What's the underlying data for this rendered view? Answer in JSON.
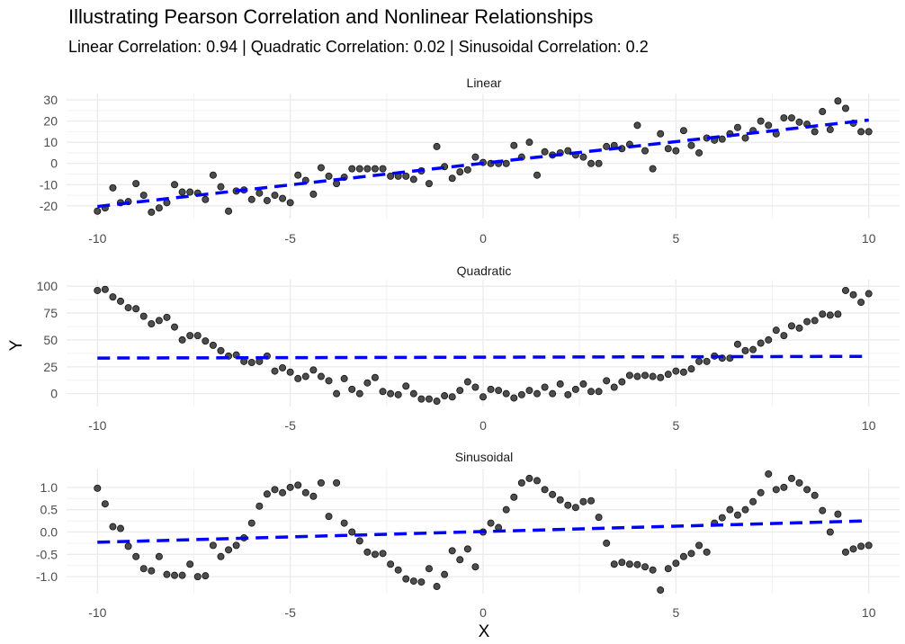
{
  "chart_data": {
    "type": "scatter",
    "title": "Illustrating Pearson Correlation and Nonlinear Relationships",
    "subtitle": "Linear Correlation: 0.94 | Quadratic Correlation: 0.02 | Sinusoidal Correlation: 0.2",
    "xlabel": "X",
    "ylabel": "Y",
    "grid": true,
    "colors": {
      "points": "#333333",
      "fit_line": "#0000ff",
      "grid": "#ebebeb"
    },
    "x_ticks": [
      -10,
      -5,
      0,
      5,
      10
    ],
    "xlim": [
      -10.8,
      10.8
    ],
    "facets": [
      {
        "name": "Linear",
        "ylim": [
          -26,
          33
        ],
        "y_ticks": [
          -20,
          -10,
          0,
          10,
          20,
          30
        ],
        "y_tick_labels": [
          "-20",
          "-10",
          "0",
          "10",
          "20",
          "30"
        ],
        "fit": {
          "x": [
            -10,
            10
          ],
          "y": [
            -20.3,
            20.5
          ]
        },
        "x": [
          -10,
          -9.8,
          -9.6,
          -9.4,
          -9.2,
          -9.0,
          -8.8,
          -8.6,
          -8.4,
          -8.2,
          -8.0,
          -7.8,
          -7.6,
          -7.4,
          -7.2,
          -7.0,
          -6.8,
          -6.6,
          -6.4,
          -6.2,
          -6.0,
          -5.8,
          -5.6,
          -5.4,
          -5.2,
          -5.0,
          -4.8,
          -4.6,
          -4.4,
          -4.2,
          -4.0,
          -3.8,
          -3.6,
          -3.4,
          -3.2,
          -3.0,
          -2.8,
          -2.6,
          -2.4,
          -2.2,
          -2.0,
          -1.8,
          -1.6,
          -1.4,
          -1.2,
          -1.0,
          -0.8,
          -0.6,
          -0.4,
          -0.2,
          0.0,
          0.2,
          0.4,
          0.6,
          0.8,
          1.0,
          1.2,
          1.4,
          1.6,
          1.8,
          2.0,
          2.2,
          2.4,
          2.6,
          2.8,
          3.0,
          3.2,
          3.4,
          3.6,
          3.8,
          4.0,
          4.2,
          4.4,
          4.6,
          4.8,
          5.0,
          5.2,
          5.4,
          5.6,
          5.8,
          6.0,
          6.2,
          6.4,
          6.6,
          6.8,
          7.0,
          7.2,
          7.4,
          7.6,
          7.8,
          8.0,
          8.2,
          8.4,
          8.6,
          8.8,
          9.0,
          9.2,
          9.4,
          9.6,
          9.8,
          10.0
        ],
        "y": [
          -22.5,
          -21,
          -11.5,
          -18.5,
          -18,
          -9.5,
          -15,
          -23,
          -21,
          -18.5,
          -10,
          -13.5,
          -13.5,
          -14,
          -17,
          -5.5,
          -11,
          -22.5,
          -13,
          -12.5,
          -17,
          -14,
          -17.5,
          -15,
          -16.5,
          -18.5,
          -5.5,
          -8,
          -14.5,
          -2,
          -6,
          -9.5,
          -6.5,
          -2.5,
          -2.5,
          -2.5,
          -2.5,
          -2.5,
          -6,
          -6,
          -6,
          -7.5,
          -3.5,
          -9.5,
          8,
          -1.5,
          -7,
          -4,
          -3,
          3,
          0.5,
          0,
          0,
          0,
          8.5,
          3,
          10,
          -5.5,
          5.5,
          4,
          5,
          6,
          4,
          3,
          0,
          0,
          8,
          8.5,
          7,
          9,
          18,
          6,
          -2.5,
          14,
          7,
          6,
          15.5,
          8.5,
          5,
          12,
          11,
          11.5,
          14,
          17,
          12,
          15.5,
          20,
          18,
          14,
          21.5,
          21.5,
          19.5,
          18.5,
          15,
          24.5,
          16,
          29.5,
          26,
          19,
          15,
          15
        ]
      },
      {
        "name": "Quadratic",
        "ylim": [
          -12,
          106
        ],
        "y_ticks": [
          0,
          25,
          50,
          75,
          100
        ],
        "y_tick_labels": [
          "0",
          "25",
          "50",
          "75",
          "100"
        ],
        "fit": {
          "x": [
            -10,
            10
          ],
          "y": [
            33.1,
            34.7
          ]
        },
        "x": [
          -10,
          -9.8,
          -9.6,
          -9.4,
          -9.2,
          -9.0,
          -8.8,
          -8.6,
          -8.4,
          -8.2,
          -8.0,
          -7.8,
          -7.6,
          -7.4,
          -7.2,
          -7.0,
          -6.8,
          -6.6,
          -6.4,
          -6.2,
          -6.0,
          -5.8,
          -5.6,
          -5.4,
          -5.2,
          -5.0,
          -4.8,
          -4.6,
          -4.4,
          -4.2,
          -4.0,
          -3.8,
          -3.6,
          -3.4,
          -3.2,
          -3.0,
          -2.8,
          -2.6,
          -2.4,
          -2.2,
          -2.0,
          -1.8,
          -1.6,
          -1.4,
          -1.2,
          -1.0,
          -0.8,
          -0.6,
          -0.4,
          -0.2,
          0.0,
          0.2,
          0.4,
          0.6,
          0.8,
          1.0,
          1.2,
          1.4,
          1.6,
          1.8,
          2.0,
          2.2,
          2.4,
          2.6,
          2.8,
          3.0,
          3.2,
          3.4,
          3.6,
          3.8,
          4.0,
          4.2,
          4.4,
          4.6,
          4.8,
          5.0,
          5.2,
          5.4,
          5.6,
          5.8,
          6.0,
          6.2,
          6.4,
          6.6,
          6.8,
          7.0,
          7.2,
          7.4,
          7.6,
          7.8,
          8.0,
          8.2,
          8.4,
          8.6,
          8.8,
          9.0,
          9.2,
          9.4,
          9.6,
          9.8,
          10.0
        ],
        "y": [
          96,
          97,
          90,
          86,
          80,
          79,
          72,
          65,
          68,
          71,
          62,
          50,
          54,
          54,
          49,
          45,
          40,
          35,
          36,
          30,
          29,
          30,
          35,
          21,
          24,
          20,
          14,
          16,
          22,
          16,
          12,
          0,
          14,
          4,
          0,
          10,
          15,
          2,
          0,
          -1,
          7,
          0,
          -5,
          -5,
          -7,
          -2,
          -3,
          3,
          11,
          6,
          -3,
          4,
          3,
          0,
          -4,
          -1,
          3,
          0,
          6,
          0,
          9,
          -1,
          4,
          9,
          2,
          2,
          12,
          6,
          11,
          17,
          16,
          17,
          16,
          15,
          18,
          21,
          20,
          23,
          30,
          30,
          35,
          33,
          33,
          46,
          40,
          41,
          47,
          50,
          59,
          54,
          63,
          61,
          67,
          68,
          74,
          73,
          74,
          96,
          92,
          85,
          93
        ],
        "note_x_offset": 0
      },
      {
        "name": "Sinusoidal",
        "ylim": [
          -1.38,
          1.42
        ],
        "y_ticks": [
          -1.0,
          -0.5,
          0.0,
          0.5,
          1.0
        ],
        "y_tick_labels": [
          "-1.0",
          "-0.5",
          "0.0",
          "0.5",
          "1.0"
        ],
        "fit": {
          "x": [
            -10,
            10
          ],
          "y": [
            -0.23,
            0.25
          ]
        },
        "x": [
          -10,
          -9.8,
          -9.6,
          -9.4,
          -9.2,
          -9.0,
          -8.8,
          -8.6,
          -8.4,
          -8.2,
          -8.0,
          -7.8,
          -7.6,
          -7.4,
          -7.2,
          -7.0,
          -6.8,
          -6.6,
          -6.4,
          -6.2,
          -6.0,
          -5.8,
          -5.6,
          -5.4,
          -5.2,
          -5.0,
          -4.8,
          -4.6,
          -4.4,
          -4.2,
          -4.0,
          -3.8,
          -3.6,
          -3.4,
          -3.2,
          -3.0,
          -2.8,
          -2.6,
          -2.4,
          -2.2,
          -2.0,
          -1.8,
          -1.6,
          -1.4,
          -1.2,
          -1.0,
          -0.8,
          -0.6,
          -0.4,
          -0.2,
          0.0,
          0.2,
          0.4,
          0.6,
          0.8,
          1.0,
          1.2,
          1.4,
          1.6,
          1.8,
          2.0,
          2.2,
          2.4,
          2.6,
          2.8,
          3.0,
          3.2,
          3.4,
          3.6,
          3.8,
          4.0,
          4.2,
          4.4,
          4.6,
          4.8,
          5.0,
          5.2,
          5.4,
          5.6,
          5.8,
          6.0,
          6.2,
          6.4,
          6.6,
          6.8,
          7.0,
          7.2,
          7.4,
          7.6,
          7.8,
          8.0,
          8.2,
          8.4,
          8.6,
          8.8,
          9.0,
          9.2,
          9.4,
          9.6,
          9.8,
          10.0
        ],
        "y": [
          0.98,
          0.63,
          0.12,
          0.08,
          -0.32,
          -0.55,
          -0.82,
          -0.87,
          -0.55,
          -0.95,
          -0.97,
          -0.97,
          -0.72,
          -1.0,
          -0.98,
          -0.3,
          -0.55,
          -0.4,
          -0.3,
          -0.13,
          0.2,
          0.58,
          0.85,
          0.95,
          0.88,
          1.0,
          1.05,
          0.88,
          0.8,
          1.1,
          0.35,
          1.1,
          0.2,
          0.0,
          -0.2,
          -0.45,
          -0.5,
          -0.48,
          -0.72,
          -0.85,
          -1.05,
          -1.1,
          -1.12,
          -0.82,
          -1.22,
          -0.95,
          -0.42,
          -0.62,
          -0.38,
          -0.78,
          0.0,
          0.2,
          0.1,
          0.5,
          0.78,
          1.1,
          1.2,
          1.15,
          0.95,
          0.84,
          0.72,
          0.6,
          0.55,
          0.68,
          0.7,
          0.33,
          -0.25,
          -0.72,
          -0.68,
          -0.72,
          -0.73,
          -0.78,
          -0.85,
          -1.3,
          -0.82,
          -0.7,
          -0.55,
          -0.48,
          -0.3,
          -0.45,
          0.2,
          0.32,
          0.5,
          0.38,
          0.5,
          0.68,
          0.88,
          1.3,
          0.95,
          1.0,
          1.2,
          1.1,
          0.95,
          0.82,
          0.48,
          0.0,
          0.4,
          -0.45,
          -0.38,
          -0.32,
          -0.3
        ]
      }
    ]
  }
}
